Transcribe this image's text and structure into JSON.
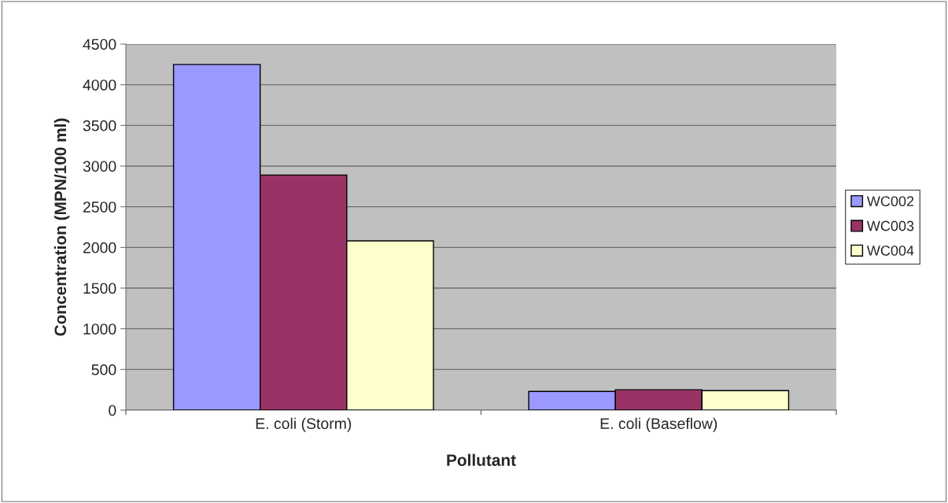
{
  "chart_data": {
    "type": "bar",
    "xlabel": "Pollutant",
    "ylabel": "Concentration (MPN/100 ml)",
    "categories": [
      "E. coli (Storm)",
      "E. coli (Baseflow)"
    ],
    "series": [
      {
        "name": "WC002",
        "color": "#9999ff",
        "values": [
          4250,
          230
        ]
      },
      {
        "name": "WC003",
        "color": "#993366",
        "values": [
          2890,
          250
        ]
      },
      {
        "name": "WC004",
        "color": "#ffffcc",
        "values": [
          2080,
          240
        ]
      }
    ],
    "ylim": [
      0,
      4500
    ],
    "yticks": [
      0,
      500,
      1000,
      1500,
      2000,
      2500,
      3000,
      3500,
      4000,
      4500
    ],
    "grid": "y",
    "legend": "right"
  }
}
